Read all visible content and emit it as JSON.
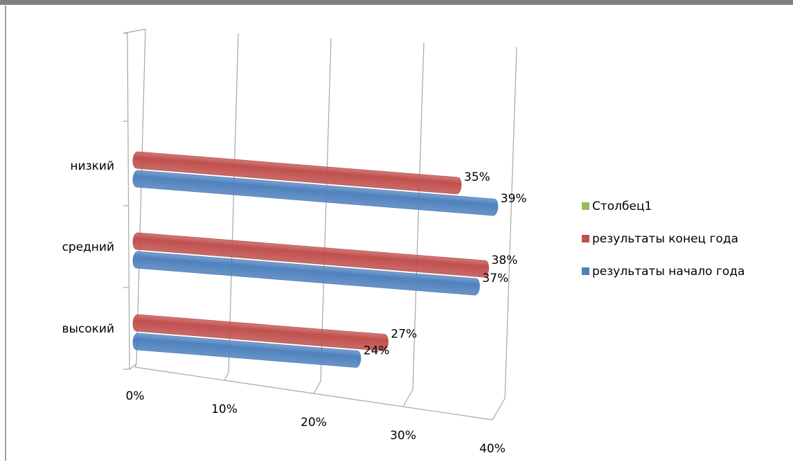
{
  "chart_data": {
    "type": "bar3d",
    "categories": [
      "высокий",
      "средний",
      "низкий"
    ],
    "series": [
      {
        "name": "Столбец1",
        "color": "#9bbb59",
        "values": [
          null,
          null,
          null
        ]
      },
      {
        "name": "результаты конец года",
        "color": "#c0504d",
        "values": [
          27,
          38,
          35
        ],
        "value_labels": [
          "27%",
          "38%",
          "35%"
        ]
      },
      {
        "name": "результаты начало года",
        "color": "#4f81bd",
        "values": [
          24,
          37,
          39
        ],
        "value_labels": [
          "24%",
          "37%",
          "39%"
        ]
      }
    ],
    "xlim": [
      0,
      40
    ],
    "xticks": [
      {
        "value": 0,
        "label": "0%"
      },
      {
        "value": 10,
        "label": "10%"
      },
      {
        "value": 20,
        "label": "20%"
      },
      {
        "value": 30,
        "label": "30%"
      },
      {
        "value": 40,
        "label": "40%"
      }
    ],
    "grid": true
  }
}
